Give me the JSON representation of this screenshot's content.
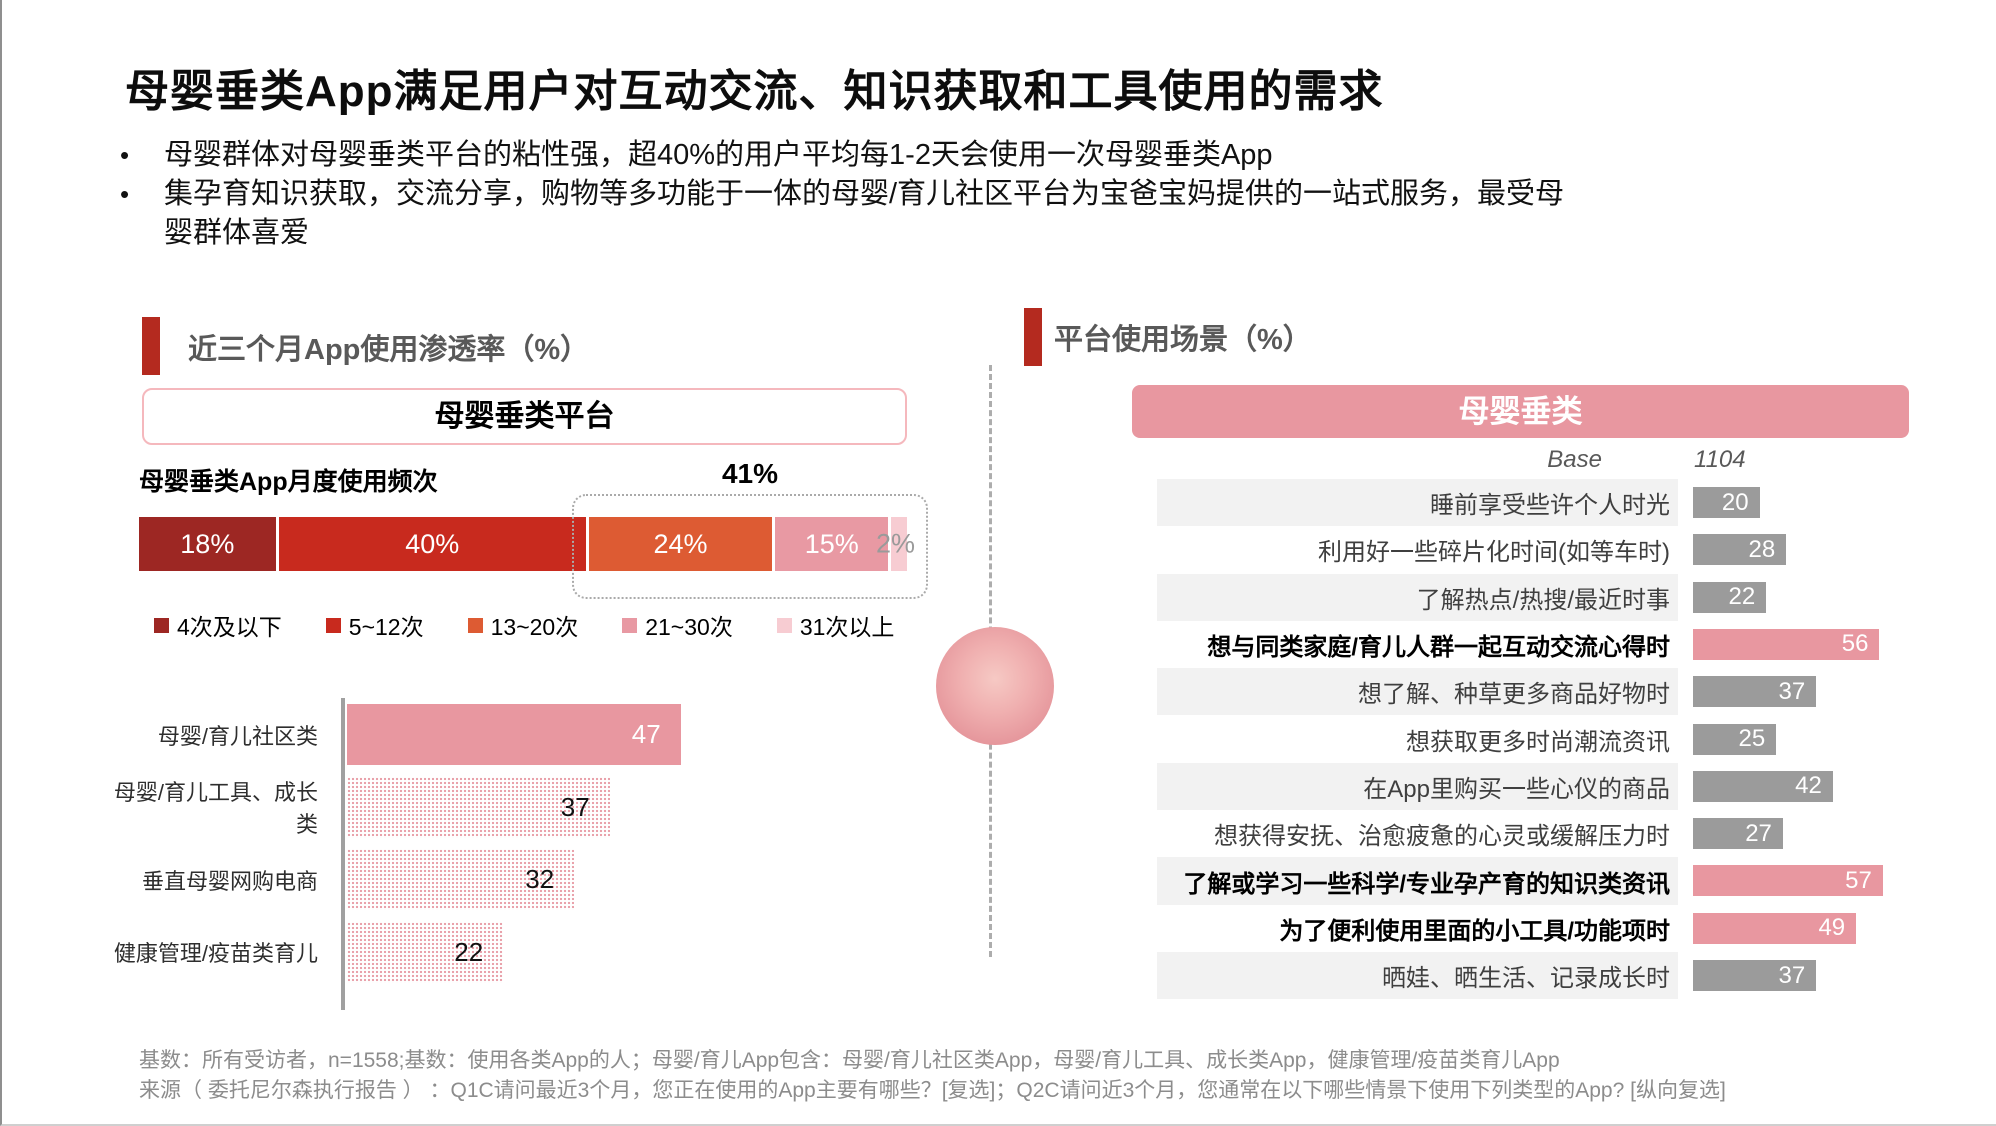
{
  "slide": {
    "title": "母婴垂类App满足用户对互动交流、知识获取和工具使用的需求",
    "bullets": [
      "母婴群体对母婴垂类平台的粘性强，超40%的用户平均每1-2天会使用一次母婴垂类App",
      "集孕育知识获取，交流分享，购物等多功能于一体的母婴/育儿社区平台为宝爸宝妈提供的一站式服务，最受母婴群体喜爱"
    ],
    "footer_line1": "基数：所有受访者，n=1558;基数：使用各类App的人；母婴/育儿App包含：母婴/育儿社区类App，母婴/育儿工具、成长类App，健康管理/疫苗类育儿App",
    "footer_line2": "来源（ 委托尼尔森执行报告 ） ：Q1C请问最近3个月，您正在使用的App主要有哪些？[复选]；Q2C请问近3个月，您通常在以下哪些情景下使用下列类型的App? [纵向复选]"
  },
  "left_section": {
    "heading": "近三个月App使用渗透率（%）",
    "platform_box_label": "母婴垂类平台",
    "frequency_title": "母婴垂类App月度使用频次",
    "callout_label": "41%"
  },
  "right_section": {
    "heading": "平台使用场景（%）",
    "header_label": "母婴垂类",
    "base_label": "Base",
    "base_value": "1104"
  },
  "colors": {
    "accent_red": "#B42A1F",
    "solid_pink": "#E897A0",
    "gray_bar": "#9B9B9B",
    "row_alt_bg": "#F2F2F2",
    "divider_gray": "#ADADAD"
  },
  "chart_data": [
    {
      "id": "monthly_usage_frequency",
      "type": "bar",
      "subtype": "stacked-horizontal-100pct",
      "title": "母婴垂类App月度使用频次",
      "categories": [
        "4次及以下",
        "5~12次",
        "13~20次",
        "21~30次",
        "31次以上"
      ],
      "values": [
        18,
        40,
        24,
        15,
        2
      ],
      "unit": "%",
      "segment_colors": [
        "#9D2723",
        "#C82A1E",
        "#DD5B33",
        "#E899A3",
        "#F7CCD2"
      ],
      "annotation": {
        "label": "41%",
        "covers": [
          "13~20次",
          "21~30次",
          "31次以上"
        ]
      },
      "legend_position": "bottom"
    },
    {
      "id": "app_penetration",
      "type": "bar",
      "subtype": "horizontal",
      "title": "近三个月App使用渗透率（%）",
      "categories": [
        "母婴/育儿社区类",
        "母婴/育儿工具、成长类",
        "垂直母婴网购电商",
        "健康管理/疫苗类育儿"
      ],
      "values": [
        47,
        37,
        32,
        22
      ],
      "bar_styles": [
        "solid",
        "hatched",
        "hatched",
        "hatched"
      ],
      "xlim": [
        0,
        50
      ]
    },
    {
      "id": "usage_scenarios",
      "type": "bar",
      "subtype": "horizontal",
      "title": "平台使用场景（%）",
      "column_header": "母婴垂类",
      "base": {
        "label": "Base",
        "value": "1104"
      },
      "categories": [
        "睡前享受些许个人时光",
        "利用好一些碎片化时间(如等车时)",
        "了解热点/热搜/最近时事",
        "想与同类家庭/育儿人群一起互动交流心得时",
        "想了解、种草更多商品好物时",
        "想获取更多时尚潮流资讯",
        "在App里购买一些心仪的商品",
        "想获得安抚、治愈疲惫的心灵或缓解压力时",
        "了解或学习一些科学/专业孕产育的知识类资讯",
        "为了便利使用里面的小工具/功能项时",
        "晒娃、晒生活、记录成长时"
      ],
      "values": [
        20,
        28,
        22,
        56,
        37,
        25,
        42,
        27,
        57,
        49,
        37
      ],
      "emphasized": [
        false,
        false,
        false,
        true,
        false,
        false,
        false,
        false,
        true,
        true,
        false
      ],
      "xlim": [
        0,
        60
      ]
    }
  ]
}
